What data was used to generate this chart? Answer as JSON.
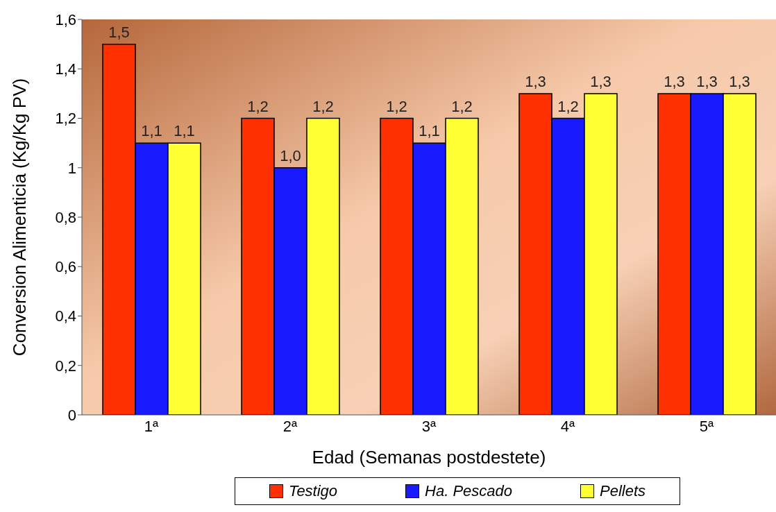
{
  "chart_data": {
    "type": "bar",
    "xlabel": "Edad (Semanas postdestete)",
    "ylabel": "Conversion Alimenticia (Kg/Kg PV)",
    "categories": [
      "1ª",
      "2ª",
      "3ª",
      "4ª",
      "5ª"
    ],
    "series": [
      {
        "name": "Testigo",
        "color": "#ff3000",
        "values": [
          1.5,
          1.2,
          1.2,
          1.3,
          1.3
        ],
        "value_labels": [
          "1,5",
          "1,2",
          "1,2",
          "1,3",
          "1,3"
        ]
      },
      {
        "name": "Ha. Pescado",
        "color": "#1a1aff",
        "values": [
          1.1,
          1.0,
          1.1,
          1.2,
          1.3
        ],
        "value_labels": [
          "1,1",
          "1,0",
          "1,1",
          "1,2",
          "1,3"
        ]
      },
      {
        "name": "Pellets",
        "color": "#ffff33",
        "values": [
          1.1,
          1.2,
          1.2,
          1.3,
          1.3
        ],
        "value_labels": [
          "1,1",
          "1,2",
          "1,2",
          "1,3",
          "1,3"
        ]
      }
    ],
    "ylim": [
      0,
      1.6
    ],
    "yticks": [
      0,
      {
        "value": 0.2,
        "label": "0,2"
      },
      {
        "value": 0.4,
        "label": "0,4"
      },
      {
        "value": 0.6,
        "label": "0,6"
      },
      {
        "value": 0.8,
        "label": "0,8"
      },
      1,
      {
        "value": 1.2,
        "label": "1,2"
      },
      {
        "value": 1.4,
        "label": "1,4"
      },
      {
        "value": 1.6,
        "label": "1,6"
      }
    ],
    "grid": false,
    "legend": "bottom"
  }
}
